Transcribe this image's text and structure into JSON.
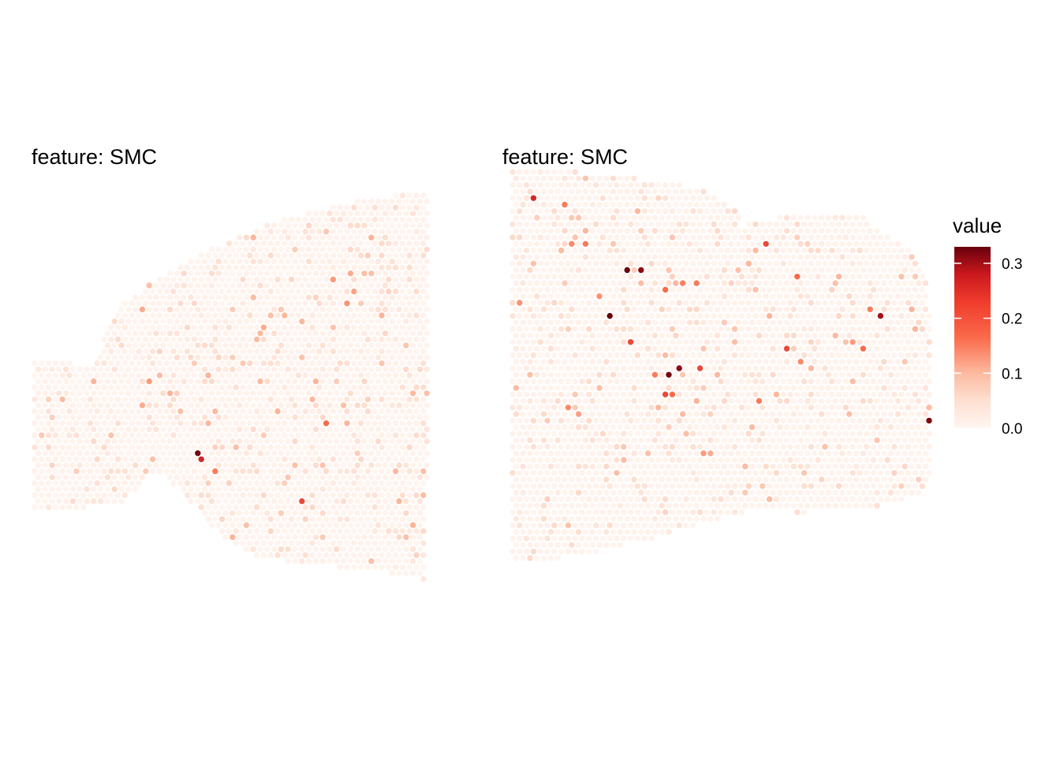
{
  "chart_data": {
    "type": "scatter",
    "description_kind": "spatial spot map (Visium-like hexagonal grid), color = value",
    "colors": {
      "low": "#fff5f0",
      "mid1": "#fcbba1",
      "mid2": "#fb6a4a",
      "mid3": "#cb181d",
      "high": "#67000d"
    },
    "legend": {
      "title": "value",
      "placement": "right",
      "ticks": [
        "0.0",
        "0.1",
        "0.2",
        "0.3"
      ],
      "range": [
        0,
        0.33
      ]
    },
    "panels": [
      {
        "title": "feature:  SMC",
        "grid_rows": 48,
        "grid_cols": 57,
        "hotspots": [
          {
            "col": 43,
            "row": 14,
            "value": 0.14
          },
          {
            "col": 45,
            "row": 13,
            "value": 0.12
          },
          {
            "col": 46,
            "row": 16,
            "value": 0.13
          },
          {
            "col": 45,
            "row": 18,
            "value": 0.15
          },
          {
            "col": 50,
            "row": 20,
            "value": 0.11
          },
          {
            "col": 13,
            "row": 16,
            "value": 0.24
          },
          {
            "col": 15,
            "row": 19,
            "value": 0.12
          },
          {
            "col": 6,
            "row": 22,
            "value": 0.1
          },
          {
            "col": 16,
            "row": 31,
            "value": 0.14
          },
          {
            "col": 15,
            "row": 35,
            "value": 0.12
          },
          {
            "col": 19,
            "row": 33,
            "value": 0.11
          },
          {
            "col": 23,
            "row": 43,
            "value": 0.32
          },
          {
            "col": 24,
            "row": 44,
            "value": 0.24
          },
          {
            "col": 26,
            "row": 46,
            "value": 0.18
          },
          {
            "col": 38,
            "row": 51,
            "value": 0.22
          },
          {
            "col": 42,
            "row": 38,
            "value": 0.2
          },
          {
            "col": 39,
            "row": 1,
            "value": 0.2
          },
          {
            "col": 32,
            "row": 5,
            "value": 0.1
          },
          {
            "col": 33,
            "row": 22,
            "value": 0.12
          },
          {
            "col": 30,
            "row": 28,
            "value": 0.08
          }
        ]
      },
      {
        "title": "feature:  SMC",
        "grid_rows": 55,
        "grid_cols": 61,
        "hotspots": [
          {
            "col": 16,
            "row": 15,
            "value": 0.33
          },
          {
            "col": 18,
            "row": 15,
            "value": 0.3
          },
          {
            "col": 14,
            "row": 22,
            "value": 0.33
          },
          {
            "col": 22,
            "row": 18,
            "value": 0.2
          },
          {
            "col": 26,
            "row": 17,
            "value": 0.18
          },
          {
            "col": 24,
            "row": 17,
            "value": 0.17
          },
          {
            "col": 10,
            "row": 11,
            "value": 0.18
          },
          {
            "col": 8,
            "row": 11,
            "value": 0.16
          },
          {
            "col": 3,
            "row": 4,
            "value": 0.24
          },
          {
            "col": 7,
            "row": 5,
            "value": 0.18
          },
          {
            "col": 1,
            "row": 20,
            "value": 0.15
          },
          {
            "col": 22,
            "row": 31,
            "value": 0.32
          },
          {
            "col": 24,
            "row": 30,
            "value": 0.3
          },
          {
            "col": 22,
            "row": 34,
            "value": 0.22
          },
          {
            "col": 23,
            "row": 34,
            "value": 0.2
          },
          {
            "col": 20,
            "row": 31,
            "value": 0.18
          },
          {
            "col": 17,
            "row": 26,
            "value": 0.22
          },
          {
            "col": 27,
            "row": 30,
            "value": 0.22
          },
          {
            "col": 39,
            "row": 27,
            "value": 0.22
          },
          {
            "col": 41,
            "row": 29,
            "value": 0.16
          },
          {
            "col": 35,
            "row": 35,
            "value": 0.18
          },
          {
            "col": 53,
            "row": 22,
            "value": 0.28
          },
          {
            "col": 51,
            "row": 21,
            "value": 0.18
          },
          {
            "col": 50,
            "row": 27,
            "value": 0.2
          },
          {
            "col": 49,
            "row": 26,
            "value": 0.14
          },
          {
            "col": 60,
            "row": 38,
            "value": 0.31
          },
          {
            "col": 28,
            "row": 1,
            "value": 0.22
          },
          {
            "col": 36,
            "row": 11,
            "value": 0.22
          },
          {
            "col": 41,
            "row": 16,
            "value": 0.2
          },
          {
            "col": 27,
            "row": 43,
            "value": 0.14
          },
          {
            "col": 28,
            "row": 43,
            "value": 0.12
          },
          {
            "col": 8,
            "row": 36,
            "value": 0.16
          },
          {
            "col": 9,
            "row": 37,
            "value": 0.13
          },
          {
            "col": 26,
            "row": 35,
            "value": 0.11
          },
          {
            "col": 12,
            "row": 19,
            "value": 0.15
          }
        ]
      }
    ]
  }
}
